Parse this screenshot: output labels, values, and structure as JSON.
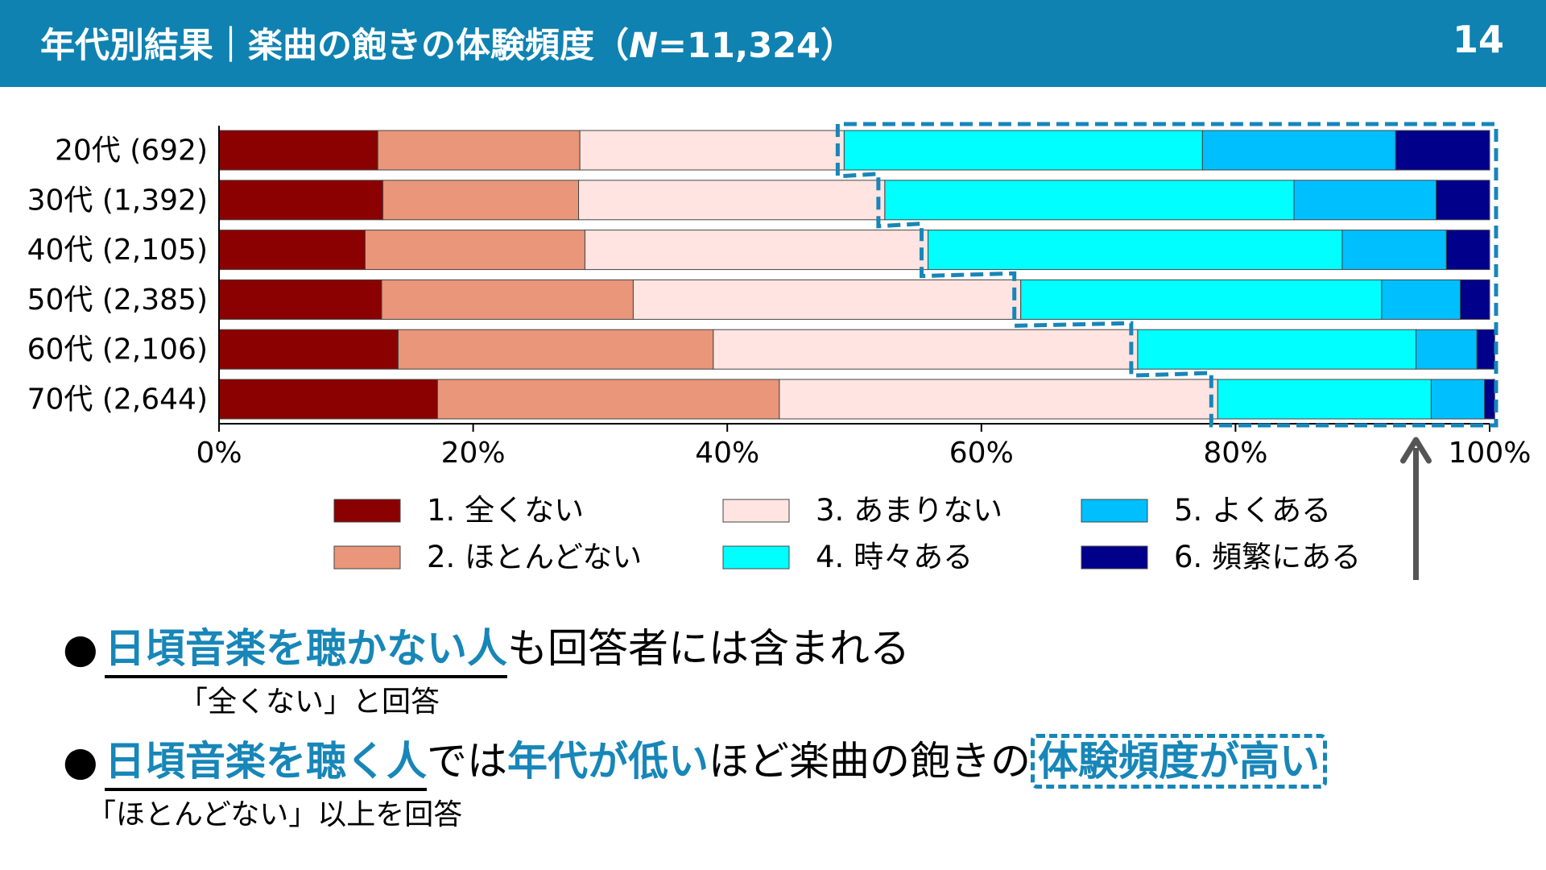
{
  "header": {
    "title_prefix": "年代別結果｜楽曲の飽きの体験頻度（",
    "n_var": "N",
    "n_rest": "=11,324）",
    "page_number": "14"
  },
  "chart_data": {
    "type": "bar",
    "orientation": "horizontal",
    "stacked": true,
    "normalized": true,
    "categories": [
      "20代 (692)",
      "30代 (1,392)",
      "40代 (2,105)",
      "50代 (2,385)",
      "60代 (2,106)",
      "70代 (2,644)"
    ],
    "series": [
      {
        "name": "1. 全くない",
        "color": "#8b0000",
        "values": [
          12.5,
          12.9,
          11.5,
          12.8,
          14.1,
          17.2
        ]
      },
      {
        "name": "2. ほとんどない",
        "color": "#e9967a",
        "values": [
          15.9,
          15.4,
          17.3,
          19.8,
          24.8,
          26.9
        ]
      },
      {
        "name": "3. あまりない",
        "color": "#ffe4e1",
        "values": [
          20.8,
          24.1,
          27.0,
          30.5,
          33.4,
          34.5
        ]
      },
      {
        "name": "4. 時々ある",
        "color": "#00ffff",
        "values": [
          28.2,
          32.2,
          32.6,
          28.4,
          21.9,
          16.8
        ]
      },
      {
        "name": "5. よくある",
        "color": "#00bfff",
        "values": [
          15.2,
          11.2,
          8.2,
          6.2,
          4.8,
          4.2
        ]
      },
      {
        "name": "6. 頻繁にある",
        "color": "#00008b",
        "values": [
          7.4,
          4.2,
          3.4,
          2.3,
          1.4,
          0.8
        ]
      }
    ],
    "xlim": [
      0,
      100
    ],
    "xticks": [
      "0%",
      "20%",
      "40%",
      "60%",
      "80%",
      "100%"
    ],
    "legend_position": "bottom",
    "highlight": "categories 4-6 (dashed outline)"
  },
  "bullets": [
    {
      "highlight": "日頃音楽を聴かない人",
      "rest": "も回答者には含まれる",
      "note": "「全くない」と回答"
    },
    {
      "highlight1": "日頃音楽を聴く人",
      "text1": "では",
      "highlight2": "年代が低い",
      "text2": "ほど楽曲の飽きの",
      "highlight3": "体験頻度が高い",
      "note": "「ほとんどない」以上を回答"
    }
  ],
  "colors": {
    "header_bg": "#0f82b2",
    "accent": "#1786b8",
    "arrow": "#555555"
  }
}
